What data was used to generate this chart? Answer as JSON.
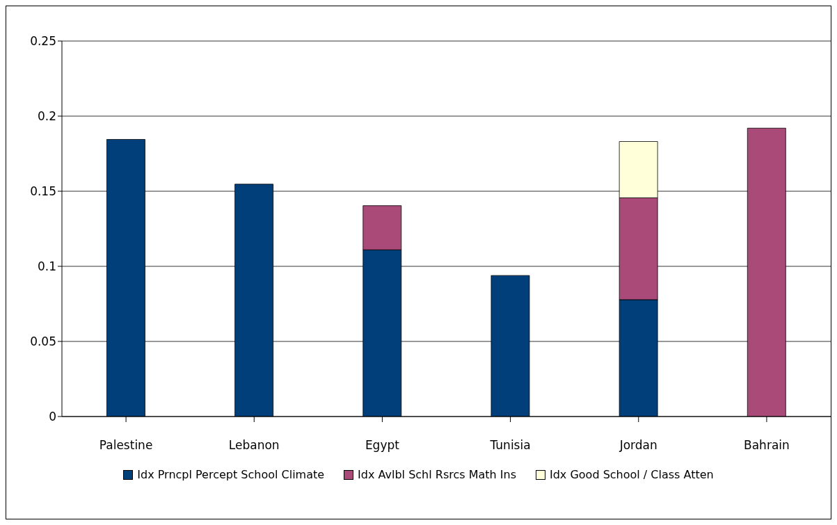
{
  "chart_data": {
    "type": "bar",
    "stacked": true,
    "categories": [
      "Palestine",
      "Lebanon",
      "Egypt",
      "Tunisia",
      "Jordan",
      "Bahrain"
    ],
    "series": [
      {
        "name": "Idx Prncpl Percept School Climate",
        "color": "#003f7a",
        "values": [
          0.1845,
          0.1547,
          0.111,
          0.0939,
          0.0778,
          null
        ]
      },
      {
        "name": "Idx Avlbl Schl Rsrcs Math Ins",
        "color": "#a94a78",
        "values": [
          null,
          null,
          0.0294,
          null,
          0.0678,
          0.192
        ]
      },
      {
        "name": "Idx Good School / Class Atten",
        "color": "#ffffd9",
        "values": [
          null,
          null,
          null,
          null,
          0.0375,
          null
        ]
      }
    ],
    "ylim": [
      0,
      0.25
    ],
    "yticks": [
      0,
      0.05,
      0.1,
      0.15,
      0.2,
      0.25
    ],
    "grid": "y",
    "legend": "bottom"
  }
}
